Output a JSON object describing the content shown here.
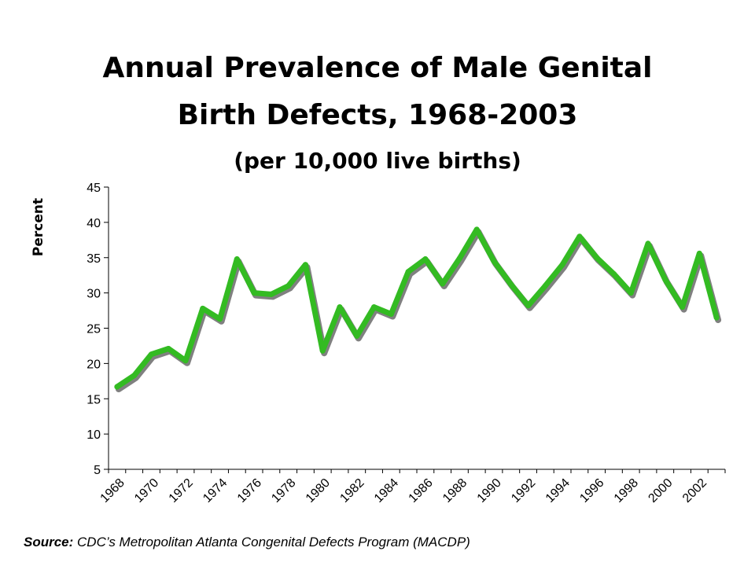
{
  "header": {
    "title_line1": "Annual Prevalence of Male Genital",
    "title_line2": "Birth Defects, 1968-2003",
    "subtitle": "(per 10,000 live births)"
  },
  "footer": {
    "source_label": "Source:",
    "source_text": "CDC’s Metropolitan Atlanta Congenital Defects Program (MACDP)"
  },
  "colors": {
    "line": "#33bb22",
    "shadow": "#808080"
  },
  "chart_data": {
    "type": "line",
    "title": "Annual Prevalence of Male Genital Birth Defects, 1968-2003",
    "subtitle": "(per 10,000 live births)",
    "ylabel": "Percent",
    "xlabel": "",
    "ylim": [
      5,
      45
    ],
    "yticks": [
      5,
      10,
      15,
      20,
      25,
      30,
      35,
      40,
      45
    ],
    "xtick_labels": [
      "1968",
      "1970",
      "1972",
      "1974",
      "1976",
      "1978",
      "1980",
      "1982",
      "1984",
      "1986",
      "1988",
      "1990",
      "1992",
      "1994",
      "1996",
      "1998",
      "2000",
      "2002"
    ],
    "grid": false,
    "legend": "none",
    "x": [
      1968,
      1969,
      1970,
      1971,
      1972,
      1973,
      1974,
      1975,
      1976,
      1977,
      1978,
      1979,
      1980,
      1981,
      1982,
      1983,
      1984,
      1985,
      1986,
      1987,
      1988,
      1989,
      1990,
      1991,
      1992,
      1993,
      1994,
      1995,
      1996,
      1997,
      1998,
      1999,
      2000,
      2001,
      2002,
      2003
    ],
    "series": [
      {
        "values": [
          16.7,
          18.3,
          21.3,
          22.1,
          20.4,
          27.8,
          26.3,
          34.8,
          30.0,
          29.8,
          31.0,
          34.0,
          21.8,
          28.0,
          23.9,
          28.0,
          27.0,
          33.0,
          34.8,
          31.3,
          34.9,
          39.0,
          34.5,
          31.2,
          28.2,
          31.0,
          34.0,
          38.0,
          35.0,
          32.7,
          30.0,
          37.0,
          31.9,
          28.0,
          35.6,
          26.5
        ]
      }
    ]
  }
}
